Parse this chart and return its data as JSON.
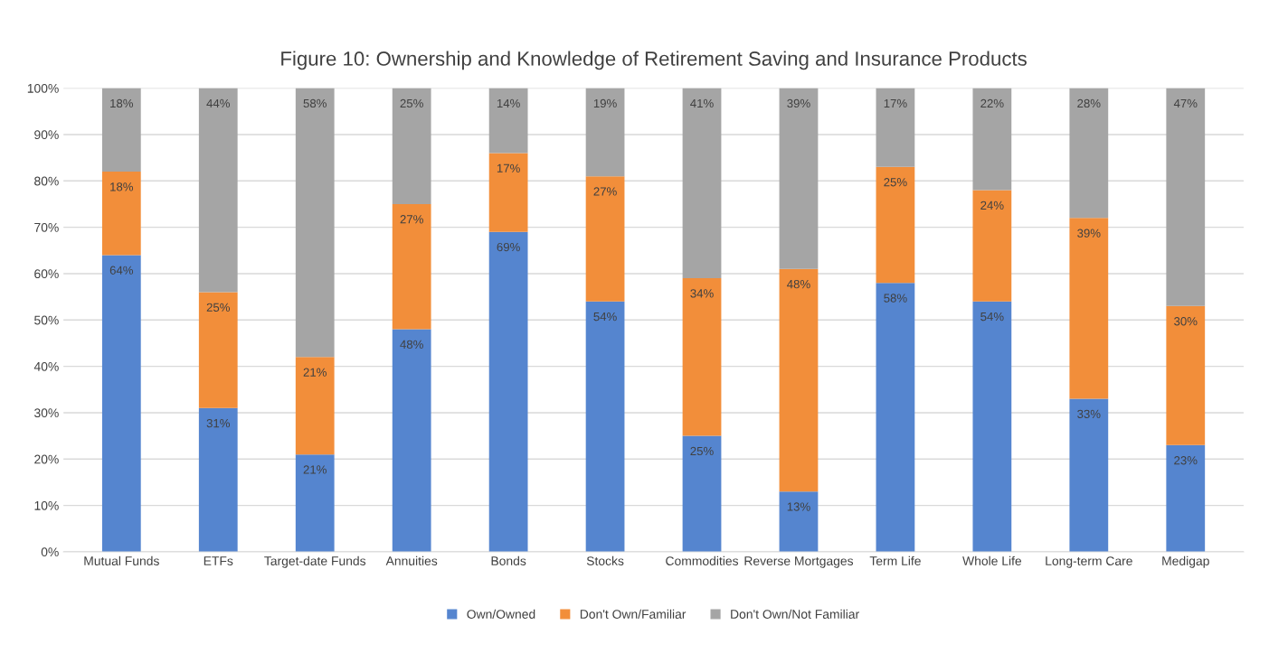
{
  "chart_data": {
    "type": "bar",
    "stacked": true,
    "title": "Figure 10: Ownership and Knowledge of Retirement Saving and Insurance Products",
    "categories": [
      "Mutual Funds",
      "ETFs",
      "Target-date Funds",
      "Annuities",
      "Bonds",
      "Stocks",
      "Commodities",
      "Reverse Mortgages",
      "Term Life",
      "Whole Life",
      "Long-term Care",
      "Medigap"
    ],
    "series": [
      {
        "name": "Own/Owned",
        "color": "#5585cf",
        "values": [
          64,
          31,
          21,
          48,
          69,
          54,
          25,
          13,
          58,
          54,
          33,
          23
        ],
        "value_labels": [
          "64%",
          "31%",
          "21%",
          "48%",
          "69%",
          "54%",
          "25%",
          "13%",
          "58%",
          "54%",
          "33%",
          "23%"
        ]
      },
      {
        "name": "Don't Own/Familiar",
        "color": "#f28e3a",
        "values": [
          18,
          25,
          21,
          27,
          17,
          27,
          34,
          48,
          25,
          24,
          39,
          30
        ],
        "value_labels": [
          "18%",
          "25%",
          "21%",
          "27%",
          "17%",
          "27%",
          "34%",
          "48%",
          "25%",
          "24%",
          "39%",
          "30%"
        ]
      },
      {
        "name": "Don't Own/Not Familiar",
        "color": "#a5a5a5",
        "values": [
          18,
          44,
          58,
          25,
          14,
          19,
          41,
          39,
          17,
          22,
          28,
          47
        ],
        "value_labels": [
          "18%",
          "44%",
          "58%",
          "25%",
          "14%",
          "19%",
          "41%",
          "39%",
          "17%",
          "22%",
          "28%",
          "47%"
        ]
      }
    ],
    "ylim": [
      0,
      100
    ],
    "yticks": [
      {
        "value": 0,
        "label": "0%"
      },
      {
        "value": 10,
        "label": "10%"
      },
      {
        "value": 20,
        "label": "20%"
      },
      {
        "value": 30,
        "label": "30%"
      },
      {
        "value": 40,
        "label": "40%"
      },
      {
        "value": 50,
        "label": "50%"
      },
      {
        "value": 60,
        "label": "60%"
      },
      {
        "value": 70,
        "label": "70%"
      },
      {
        "value": 80,
        "label": "80%"
      },
      {
        "value": 90,
        "label": "90%"
      },
      {
        "value": 100,
        "label": "100%"
      }
    ],
    "grid": "y",
    "legend": "bottom"
  }
}
